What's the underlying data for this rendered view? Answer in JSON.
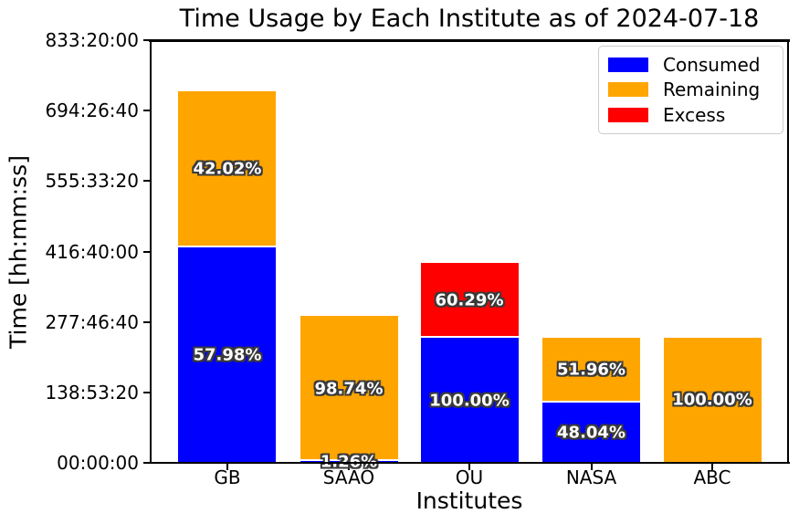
{
  "chart_data": {
    "type": "bar",
    "stacked": true,
    "title": "Time Usage by Each Institute as of 2024-07-18",
    "xlabel": "Institutes",
    "ylabel": "Time [hh:mm:ss]",
    "categories": [
      "GB",
      "SAAO",
      "OU",
      "NASA",
      "ABC"
    ],
    "y_axis": {
      "unit": "seconds",
      "min_seconds": 0,
      "max_seconds": 3000000,
      "tick_seconds": [
        0,
        500000,
        1000000,
        1500000,
        2000000,
        2500000,
        3000000
      ],
      "tick_labels": [
        "00:00:00",
        "138:53:20",
        "277:46:40",
        "416:40:00",
        "555:33:20",
        "694:26:40",
        "833:20:00"
      ],
      "grid": false
    },
    "series": [
      {
        "name": "Consumed",
        "color": "#0000ff",
        "values_seconds": [
          1530000,
          13124,
          885000,
          427100,
          0
        ],
        "percent_labels": [
          "57.98%",
          "1.26%",
          "100.00%",
          "48.04%",
          ""
        ]
      },
      {
        "name": "Remaining",
        "color": "#ffa500",
        "values_seconds": [
          1108800,
          1028476,
          0,
          461900,
          889000
        ],
        "percent_labels": [
          "42.02%",
          "98.74%",
          "",
          "51.96%",
          "100.00%"
        ]
      },
      {
        "name": "Excess",
        "color": "#ff0000",
        "values_seconds": [
          0,
          0,
          533600,
          0,
          0
        ],
        "percent_labels": [
          "",
          "",
          "60.29%",
          "",
          ""
        ]
      }
    ],
    "legend": {
      "location": "upper-right",
      "entries": [
        "Consumed",
        "Remaining",
        "Excess"
      ]
    },
    "bar_label_style": {
      "text_color": "#ffffff",
      "outline_color": "#3a3a3a"
    }
  }
}
